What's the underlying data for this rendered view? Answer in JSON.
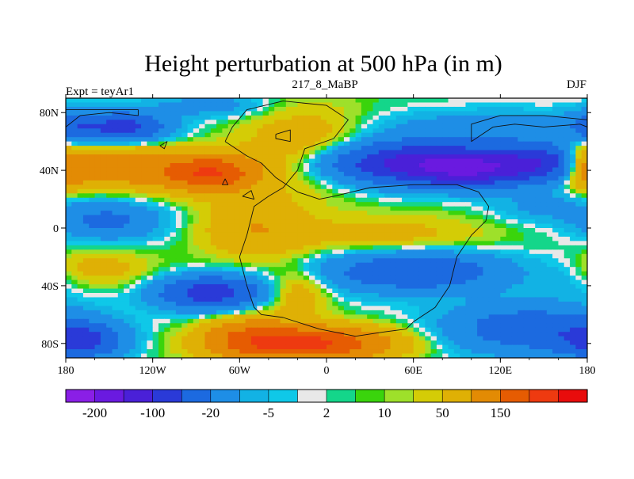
{
  "chart_data": {
    "type": "heatmap",
    "title": "Height perturbation at 500 hPa (in m)",
    "subtitle_left": "Expt = teyAr1",
    "subtitle_center": "217_8_MaBP",
    "subtitle_right": "DJF",
    "x_range": [
      -180,
      180
    ],
    "y_range": [
      -90,
      90
    ],
    "x_ticks": [
      {
        "value": -180,
        "label": "180"
      },
      {
        "value": -120,
        "label": "120W"
      },
      {
        "value": -60,
        "label": "60W"
      },
      {
        "value": 0,
        "label": "0"
      },
      {
        "value": 60,
        "label": "60E"
      },
      {
        "value": 120,
        "label": "120E"
      },
      {
        "value": 180,
        "label": "180"
      }
    ],
    "y_ticks": [
      {
        "value": 80,
        "label": "80N"
      },
      {
        "value": 40,
        "label": "40N"
      },
      {
        "value": 0,
        "label": "0"
      },
      {
        "value": -40,
        "label": "40S"
      },
      {
        "value": -80,
        "label": "80S"
      }
    ],
    "colorbar": {
      "colors": [
        "#8a1fe6",
        "#6a1ae0",
        "#4a20d8",
        "#2a3ad8",
        "#1c6ae0",
        "#1e8ee6",
        "#12b2e4",
        "#0fc8e8",
        "#e8e8e8",
        "#14d68a",
        "#3ad40c",
        "#9ee02a",
        "#d4cc06",
        "#dfb005",
        "#e38b04",
        "#e65c02",
        "#ee3a10",
        "#e80c0c"
      ],
      "labels": [
        {
          "boundary": 1,
          "text": "-200"
        },
        {
          "boundary": 3,
          "text": "-100"
        },
        {
          "boundary": 5,
          "text": "-20"
        },
        {
          "boundary": 7,
          "text": "-5"
        },
        {
          "boundary": 9,
          "text": "2"
        },
        {
          "boundary": 11,
          "text": "10"
        },
        {
          "boundary": 13,
          "text": "50"
        },
        {
          "boundary": 15,
          "text": "150"
        }
      ]
    },
    "field_levels": [
      -200,
      -150,
      -100,
      -50,
      -20,
      -10,
      -5,
      -2,
      2,
      5,
      10,
      20,
      50,
      100,
      150,
      200
    ]
  }
}
